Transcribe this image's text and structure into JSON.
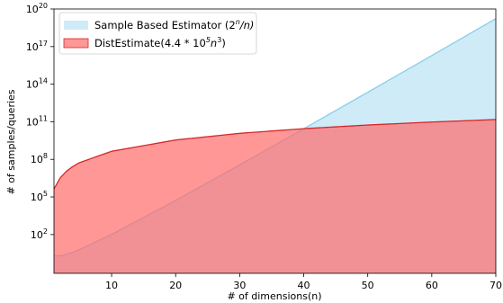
{
  "chart_data": {
    "type": "area",
    "xlabel": "# of dimensions(n)",
    "ylabel": "# of samples/queries",
    "y_scale": "log",
    "xlim": [
      1,
      70
    ],
    "ylim": [
      0.08,
      1e+20
    ],
    "x_ticks": [
      10,
      20,
      30,
      40,
      50,
      60,
      70
    ],
    "y_ticks": [
      {
        "value": 100.0,
        "base": "10",
        "exp": "2"
      },
      {
        "value": 100000.0,
        "base": "10",
        "exp": "5"
      },
      {
        "value": 100000000.0,
        "base": "10",
        "exp": "8"
      },
      {
        "value": 100000000000.0,
        "base": "10",
        "exp": "11"
      },
      {
        "value": 100000000000000.0,
        "base": "10",
        "exp": "14"
      },
      {
        "value": 1e+17,
        "base": "10",
        "exp": "17"
      },
      {
        "value": 1e+20,
        "base": "10",
        "exp": "20"
      }
    ],
    "grid": false,
    "legend_position": "top-left",
    "series": [
      {
        "name": "Sample Based Estimator (2^n/n)",
        "legend_prefix": "Sample Based Estimator (2",
        "legend_sup": "n",
        "legend_suffix": "/n)",
        "fill_color": "#87ceeb",
        "line_color": "#87ceeb",
        "x": [
          1,
          2,
          3,
          4,
          5,
          10,
          20,
          30,
          40,
          50,
          60,
          70
        ],
        "values": [
          2,
          2,
          2.67,
          4,
          6.4,
          102.4,
          52428.8,
          35791394,
          27500000000.0,
          22500000000000.0,
          1.92e+16,
          1.69e+19
        ]
      },
      {
        "name": "DistEstimate(4.4*10^5 n^3)",
        "legend_prefix": "DistEstimate(4.4 * 10",
        "legend_sup": "5",
        "legend_mid": "n",
        "legend_sup2": "3",
        "legend_suffix": ")",
        "fill_color": "#ff6b6b",
        "line_color": "#d62728",
        "x": [
          1,
          2,
          3,
          4,
          5,
          10,
          20,
          30,
          40,
          50,
          60,
          70
        ],
        "values": [
          440000,
          3520000,
          11880000,
          28160000,
          55000000,
          440000000,
          3520000000,
          11880000000,
          28160000000,
          55000000000,
          95040000000,
          150920000000
        ]
      }
    ]
  }
}
